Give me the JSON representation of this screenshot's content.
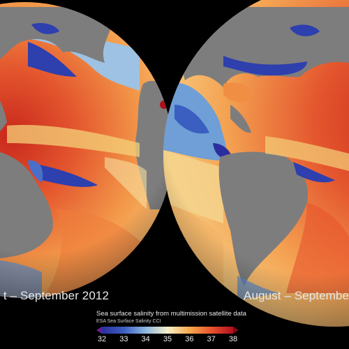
{
  "captions": {
    "left_period": "t – September 2012",
    "right_period": "August – September"
  },
  "legend": {
    "title": "Sea surface salinity from multimission satellite data",
    "subtitle": "ESA Sea Surface Salinity CCI",
    "ticks": [
      "32",
      "33",
      "34",
      "35",
      "36",
      "37",
      "38"
    ],
    "min": 32,
    "max": 38,
    "colors": [
      "#2b2f9e",
      "#3a5fc0",
      "#8fb6e0",
      "#f5f0c8",
      "#f7a94f",
      "#e8542c",
      "#b0101e"
    ]
  },
  "colors": {
    "background": "#000000",
    "land": "#7d7d7d",
    "text": "#e8e8e8"
  }
}
